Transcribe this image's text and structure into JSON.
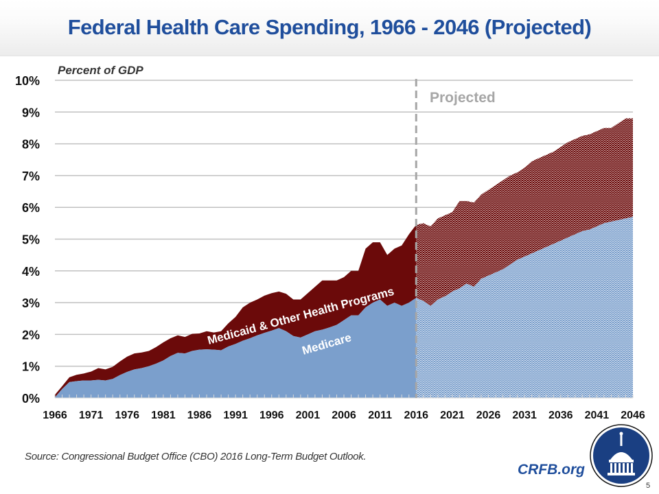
{
  "header": {
    "title": "Federal Health Care Spending, 1966 - 2046 (Projected)"
  },
  "footer": {
    "source": "Source: Congressional Budget Office (CBO) 2016 Long-Term Budget Outlook.",
    "brand": "CRFB.org",
    "page_number": "5"
  },
  "colors": {
    "title": "#1f4e9c",
    "medicare": "#7b9fcc",
    "medicaid": "#6b0a0a",
    "projected_divider": "#a6a6a6",
    "projected_label": "#a6a6a6",
    "gridline": "#c0c0c0",
    "logo_blue": "#1a3f82"
  },
  "chart_data": {
    "type": "area",
    "stacked": true,
    "title": "Federal Health Care Spending, 1966 - 2046 (Projected)",
    "ylabel": "Percent of GDP",
    "xlabel": "",
    "ylim": [
      0,
      10
    ],
    "yticks": [
      "0%",
      "1%",
      "2%",
      "3%",
      "4%",
      "5%",
      "6%",
      "7%",
      "8%",
      "9%",
      "10%"
    ],
    "xlim": [
      1966,
      2046
    ],
    "xticks": [
      "1966",
      "1971",
      "1976",
      "1981",
      "1986",
      "1991",
      "1996",
      "2001",
      "2006",
      "2011",
      "2016",
      "2021",
      "2026",
      "2031",
      "2036",
      "2041",
      "2046"
    ],
    "grid": true,
    "projection_start": 2016,
    "projection_label": "Projected",
    "x": [
      1966,
      1967,
      1968,
      1969,
      1970,
      1971,
      1972,
      1973,
      1974,
      1975,
      1976,
      1977,
      1978,
      1979,
      1980,
      1981,
      1982,
      1983,
      1984,
      1985,
      1986,
      1987,
      1988,
      1989,
      1990,
      1991,
      1992,
      1993,
      1994,
      1995,
      1996,
      1997,
      1998,
      1999,
      2000,
      2001,
      2002,
      2003,
      2004,
      2005,
      2006,
      2007,
      2008,
      2009,
      2010,
      2011,
      2012,
      2013,
      2014,
      2015,
      2016,
      2017,
      2018,
      2019,
      2020,
      2021,
      2022,
      2023,
      2024,
      2025,
      2026,
      2027,
      2028,
      2029,
      2030,
      2031,
      2032,
      2033,
      2034,
      2035,
      2036,
      2037,
      2038,
      2039,
      2040,
      2041,
      2042,
      2043,
      2044,
      2045,
      2046
    ],
    "series": [
      {
        "name": "Medicare",
        "label": "Medicare",
        "values": [
          0.02,
          0.28,
          0.5,
          0.53,
          0.55,
          0.55,
          0.57,
          0.55,
          0.6,
          0.72,
          0.82,
          0.9,
          0.94,
          1.0,
          1.08,
          1.18,
          1.32,
          1.42,
          1.4,
          1.48,
          1.52,
          1.53,
          1.52,
          1.5,
          1.62,
          1.7,
          1.8,
          1.88,
          1.97,
          2.05,
          2.12,
          2.2,
          2.1,
          1.95,
          1.9,
          2.0,
          2.1,
          2.15,
          2.22,
          2.3,
          2.45,
          2.6,
          2.6,
          2.85,
          3.0,
          3.1,
          2.9,
          3.0,
          2.9,
          3.0,
          3.15,
          3.05,
          2.9,
          3.1,
          3.2,
          3.35,
          3.45,
          3.6,
          3.5,
          3.75,
          3.85,
          3.95,
          4.05,
          4.2,
          4.35,
          4.45,
          4.55,
          4.65,
          4.75,
          4.85,
          4.95,
          5.05,
          5.15,
          5.25,
          5.3,
          5.4,
          5.5,
          5.55,
          5.6,
          5.65,
          5.7
        ]
      },
      {
        "name": "Medicaid & Other Health Programs",
        "label": "Medicaid & Other Health Programs",
        "values": [
          0.08,
          0.09,
          0.15,
          0.2,
          0.22,
          0.28,
          0.37,
          0.35,
          0.38,
          0.43,
          0.48,
          0.5,
          0.49,
          0.48,
          0.52,
          0.57,
          0.56,
          0.55,
          0.52,
          0.54,
          0.51,
          0.57,
          0.54,
          0.6,
          0.73,
          0.85,
          1.05,
          1.12,
          1.13,
          1.17,
          1.18,
          1.15,
          1.18,
          1.15,
          1.2,
          1.3,
          1.4,
          1.55,
          1.48,
          1.4,
          1.35,
          1.4,
          1.4,
          1.85,
          1.9,
          1.8,
          1.6,
          1.7,
          1.9,
          2.15,
          2.3,
          2.45,
          2.5,
          2.55,
          2.55,
          2.5,
          2.75,
          2.6,
          2.65,
          2.65,
          2.7,
          2.75,
          2.8,
          2.8,
          2.75,
          2.8,
          2.9,
          2.9,
          2.9,
          2.9,
          2.95,
          3.0,
          3.0,
          3.0,
          3.0,
          3.0,
          3.0,
          2.95,
          3.05,
          3.15,
          3.1
        ]
      }
    ]
  }
}
